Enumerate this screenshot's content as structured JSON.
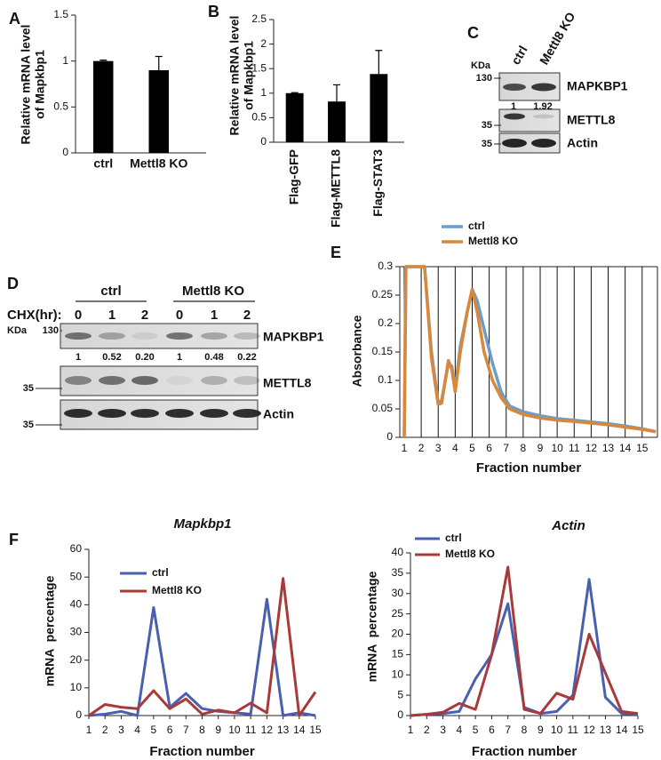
{
  "chart_data": [
    {
      "type": "bar",
      "panel": "A",
      "y_label": [
        "Relative mRNA level",
        "of Mapkbp1"
      ],
      "categories": [
        "ctrl",
        "Mettl8 KO"
      ],
      "values": [
        1,
        0.9
      ],
      "errors": [
        0.01,
        0.15
      ],
      "color": "#000000",
      "ylim": [
        0,
        1.5
      ],
      "yticks": [
        0,
        0.5,
        1,
        1.5
      ]
    },
    {
      "type": "bar",
      "panel": "B",
      "y_label": [
        "Relative mRNA level",
        "of Mapkbp1"
      ],
      "categories": [
        "Flag-GFP",
        "Flag-METTL8",
        "Flag-STAT3"
      ],
      "values": [
        1,
        0.83,
        1.39
      ],
      "errors": [
        0.01,
        0.34,
        0.48
      ],
      "color": "#000000",
      "ylim": [
        0,
        2.5
      ],
      "yticks": [
        0,
        0.5,
        1,
        1.5,
        2,
        2.5
      ]
    },
    {
      "type": "line",
      "panel": "E",
      "y_label": [
        "Absorbance"
      ],
      "x_label": "Fraction number",
      "x": [
        1,
        1.1,
        1.5,
        2,
        2.2,
        2.6,
        3,
        3.2,
        3.6,
        3.8,
        4,
        4.3,
        4.7,
        5,
        5.3,
        5.7,
        6.2,
        6.7,
        7.2,
        8,
        9,
        10,
        11,
        12,
        13,
        14,
        15,
        15.8
      ],
      "series": [
        {
          "name": "ctrl",
          "color": "#6a9ec8",
          "values": [
            0,
            0.3,
            0.3,
            0.3,
            0.3,
            0.15,
            0.06,
            0.065,
            0.13,
            0.125,
            0.085,
            0.16,
            0.22,
            0.26,
            0.24,
            0.19,
            0.13,
            0.08,
            0.055,
            0.045,
            0.038,
            0.033,
            0.03,
            0.027,
            0.024,
            0.02,
            0.015,
            0.01
          ]
        },
        {
          "name": "Mettl8 KO",
          "color": "#d9873a",
          "values": [
            0,
            0.3,
            0.3,
            0.3,
            0.3,
            0.14,
            0.058,
            0.06,
            0.135,
            0.12,
            0.08,
            0.15,
            0.22,
            0.26,
            0.22,
            0.15,
            0.1,
            0.07,
            0.05,
            0.04,
            0.034,
            0.03,
            0.028,
            0.025,
            0.022,
            0.018,
            0.014,
            0.01
          ]
        }
      ],
      "xlim": [
        0.74,
        15.9
      ],
      "xticks": [
        1,
        2,
        3,
        4,
        5,
        6,
        7,
        8,
        9,
        10,
        11,
        12,
        13,
        14,
        15
      ],
      "ylim": [
        0,
        0.3
      ],
      "yticks": [
        0,
        0.05,
        0.1,
        0.15,
        0.2,
        0.25,
        0.3
      ],
      "grid": "x"
    },
    {
      "type": "line",
      "panel": "F",
      "title": "Mapkbp1",
      "y_label": [
        "mRNA  percentage"
      ],
      "x_label": "Fraction number",
      "categories": [
        "1",
        "2",
        "3",
        "4",
        "5",
        "6",
        "7",
        "8",
        "9",
        "10",
        "11",
        "12",
        "13",
        "14",
        "15"
      ],
      "series": [
        {
          "name": "ctrl",
          "color": "#4a5fb0",
          "values": [
            0,
            0.5,
            1.5,
            0,
            39,
            3,
            8,
            2.5,
            1.5,
            1,
            0.5,
            42,
            0,
            1,
            0
          ]
        },
        {
          "name": "Mettl8 KO",
          "color": "#a83a3a",
          "values": [
            0,
            4,
            3,
            2.5,
            9,
            2.5,
            6,
            0.5,
            2,
            1,
            4.5,
            1,
            49.5,
            0,
            8.5
          ]
        }
      ],
      "ylim": [
        0,
        60
      ],
      "yticks": [
        0,
        10,
        20,
        30,
        40,
        50,
        60
      ]
    },
    {
      "type": "line",
      "title": "Actin",
      "y_label": [
        "mRNA  percentage"
      ],
      "x_label": "Fraction number",
      "categories": [
        "1",
        "2",
        "3",
        "4",
        "5",
        "6",
        "7",
        "8",
        "9",
        "10",
        "11",
        "12",
        "13",
        "14",
        "15"
      ],
      "series": [
        {
          "name": "ctrl",
          "color": "#4a5fb0",
          "values": [
            0,
            0.3,
            0.5,
            1,
            9,
            15,
            27.5,
            2,
            0.5,
            1,
            5,
            33.5,
            4.5,
            0.5,
            0.3
          ]
        },
        {
          "name": "Mettl8 KO",
          "color": "#a83a3a",
          "values": [
            0,
            0.3,
            0.8,
            3,
            1.5,
            15,
            36.5,
            1.5,
            0.5,
            5.5,
            4,
            20,
            10.5,
            1,
            0.5
          ]
        }
      ],
      "ylim": [
        0,
        40
      ],
      "yticks": [
        0,
        5,
        10,
        15,
        20,
        25,
        30,
        35,
        40
      ]
    }
  ],
  "blots": [
    {
      "panel": "C",
      "lanes": [
        "ctrl",
        "Mettl8 KO"
      ],
      "kda": "KDa",
      "rows": [
        {
          "marker": "130",
          "protein": "MAPKBP1"
        },
        {
          "marker": "35",
          "protein": "METTL8"
        },
        {
          "marker": "35",
          "protein": "Actin"
        }
      ],
      "quantification": [
        "1",
        "1.92"
      ]
    },
    {
      "panel": "D",
      "groups": [
        "ctrl",
        "Mettl8 KO"
      ],
      "treatment": "CHX(hr):",
      "lanes": [
        "0",
        "1",
        "2",
        "0",
        "1",
        "2"
      ],
      "kda": "KDa",
      "rows": [
        {
          "marker": "130",
          "protein": "MAPKBP1"
        },
        {
          "marker": "35",
          "protein": "METTL8"
        },
        {
          "marker": "35",
          "protein": "Actin"
        }
      ],
      "quantification": [
        "1",
        "0.52",
        "0.20",
        "1",
        "0.48",
        "0.22"
      ]
    }
  ]
}
